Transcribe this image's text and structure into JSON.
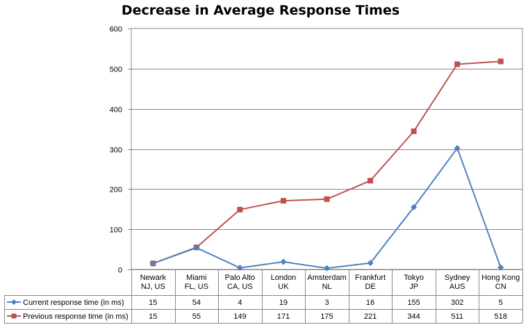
{
  "chart_data": {
    "type": "line",
    "title": "Decrease in Average Response Times",
    "xlabel": "",
    "ylabel": "",
    "ylim": [
      0,
      600
    ],
    "yticks": [
      0,
      100,
      200,
      300,
      400,
      500,
      600
    ],
    "grid": true,
    "legend": "bottom data table",
    "categories": [
      [
        "Newark",
        "NJ, US"
      ],
      [
        "Miami",
        "FL, US"
      ],
      [
        "Palo Alto",
        "CA, US"
      ],
      [
        "London",
        "UK"
      ],
      [
        "Amsterdam",
        "NL"
      ],
      [
        "Frankfurt",
        "DE"
      ],
      [
        "Tokyo",
        "JP"
      ],
      [
        "Sydney",
        "AUS"
      ],
      [
        "Hong Kong",
        "CN"
      ]
    ],
    "series": [
      {
        "name": "Current response time (in ms)",
        "color": "#4F81BD",
        "marker": "diamond",
        "values": [
          15,
          54,
          4,
          19,
          3,
          16,
          155,
          302,
          5
        ]
      },
      {
        "name": "Previous response time (in ms)",
        "color": "#C0504D",
        "marker": "square",
        "values": [
          15,
          55,
          149,
          171,
          175,
          221,
          344,
          511,
          518
        ]
      }
    ]
  }
}
